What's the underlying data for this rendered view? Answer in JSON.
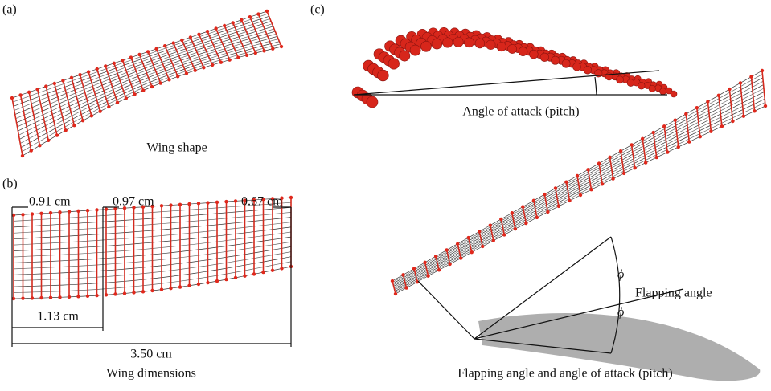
{
  "panels": [
    {
      "label": "(a)",
      "caption": "Wing shape"
    },
    {
      "label": "(b)",
      "caption": "Wing dimensions",
      "dimensions": [
        "0.91 cm",
        "0.97 cm",
        "0.67 cm",
        "1.13 cm",
        "3.50 cm"
      ]
    },
    {
      "label": "(c)",
      "caption": "Flapping angle and angle of attack (pitch)",
      "annotations": [
        "Angle of attack (pitch)",
        "ϕ",
        "Flapping angle",
        "ϕ"
      ]
    }
  ]
}
